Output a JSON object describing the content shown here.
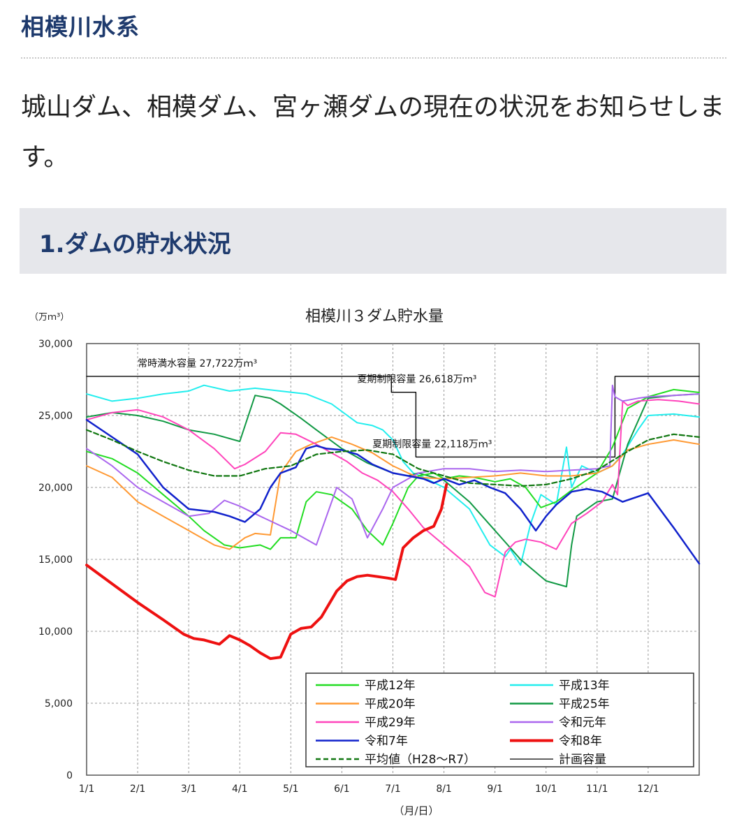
{
  "page": {
    "title": "相模川水系",
    "intro": "城山ダム、相模ダム、宮ヶ瀬ダムの現在の状況をお知らせします。",
    "section_title": "1.ダムの貯水状況"
  },
  "chart_data": {
    "type": "line",
    "title": "相模川３ダム貯水量",
    "ylabel": "（万ｍ³）",
    "xlabel": "（月/日）",
    "ylim": [
      0,
      30000
    ],
    "xlim": [
      0,
      12
    ],
    "y_ticks": [
      "0",
      "5,000",
      "10,000",
      "15,000",
      "20,000",
      "25,000",
      "30,000"
    ],
    "y_tick_values": [
      0,
      5000,
      10000,
      15000,
      20000,
      25000,
      30000
    ],
    "x_ticks": [
      "1/1",
      "2/1",
      "3/1",
      "4/1",
      "5/1",
      "6/1",
      "7/1",
      "8/1",
      "9/1",
      "10/1",
      "11/1",
      "12/1"
    ],
    "annotations": [
      {
        "text": "常時満水容量 27,722万ｍ³",
        "x": 1.0,
        "y": 28400
      },
      {
        "text": "夏期制限容量 26,618万ｍ³",
        "x": 5.3,
        "y": 27300
      },
      {
        "text": "夏期制限容量 22,118万ｍ³",
        "x": 5.6,
        "y": 22800
      }
    ],
    "legend": {
      "placement": "bottom-right",
      "entries": [
        {
          "name": "平成12年",
          "color": "#22dd22",
          "style": "solid"
        },
        {
          "name": "平成13年",
          "color": "#22eeee",
          "style": "solid"
        },
        {
          "name": "平成20年",
          "color": "#ff9933",
          "style": "solid"
        },
        {
          "name": "平成25年",
          "color": "#119944",
          "style": "solid"
        },
        {
          "name": "平成29年",
          "color": "#ff44bb",
          "style": "solid"
        },
        {
          "name": "令和元年",
          "color": "#aa66ee",
          "style": "solid"
        },
        {
          "name": "令和7年",
          "color": "#1122cc",
          "style": "solid"
        },
        {
          "name": "令和8年",
          "color": "#ee1111",
          "style": "thick"
        },
        {
          "name": "平均値（H28～R7）",
          "color": "#117711",
          "style": "dashed"
        },
        {
          "name": "計画容量",
          "color": "#000000",
          "style": "thin"
        }
      ]
    },
    "series": [
      {
        "name": "計画容量",
        "color": "#000000",
        "width": 1.4,
        "step": true,
        "x": [
          0,
          5.97,
          5.97,
          6.45,
          6.45,
          10.35,
          10.35,
          12
        ],
        "y": [
          27722,
          27722,
          26618,
          26618,
          22118,
          22118,
          27722,
          27722
        ]
      },
      {
        "name": "平成13年",
        "color": "#22eeee",
        "width": 2,
        "x": [
          0,
          0.5,
          1,
          1.5,
          2,
          2.3,
          2.8,
          3.3,
          3.8,
          4.3,
          4.8,
          5.3,
          5.6,
          5.8,
          6,
          6.2,
          6.4,
          6.6,
          7,
          7.5,
          7.9,
          8.2,
          8.3,
          8.5,
          8.7,
          8.9,
          9.2,
          9.4,
          9.5,
          9.7,
          10,
          10.3,
          10.5,
          10.8,
          11,
          11.5,
          12
        ],
        "y": [
          26500,
          26000,
          26200,
          26500,
          26700,
          27100,
          26700,
          26900,
          26700,
          26500,
          25800,
          24500,
          24300,
          24000,
          23300,
          21800,
          21000,
          20700,
          20000,
          18500,
          16000,
          15200,
          15700,
          14600,
          17500,
          19500,
          18800,
          22800,
          20000,
          21500,
          21000,
          21500,
          22300,
          24000,
          25000,
          25100,
          24900
        ]
      },
      {
        "name": "平成25年",
        "color": "#119944",
        "width": 2,
        "x": [
          0,
          0.5,
          1,
          1.5,
          2,
          2.5,
          3,
          3.3,
          3.6,
          3.8,
          4.2,
          4.5,
          5,
          5.5,
          6,
          6.3,
          6.5,
          7,
          7.5,
          8,
          8.5,
          9,
          9.4,
          9.5,
          9.6,
          10,
          10.3,
          10.6,
          11,
          11.5,
          12
        ],
        "y": [
          24900,
          25200,
          25000,
          24600,
          24000,
          23700,
          23200,
          26400,
          26200,
          25800,
          24800,
          24000,
          22700,
          21700,
          21000,
          20800,
          21000,
          20500,
          19000,
          17000,
          15000,
          13500,
          13100,
          16000,
          18000,
          19000,
          19200,
          23000,
          26200,
          26400,
          26500
        ]
      },
      {
        "name": "平成12年",
        "color": "#22dd22",
        "width": 2,
        "x": [
          0,
          0.5,
          1,
          1.5,
          2,
          2.3,
          2.7,
          3,
          3.4,
          3.6,
          3.8,
          4.1,
          4.3,
          4.5,
          4.8,
          5.2,
          5.5,
          5.8,
          6,
          6.3,
          6.5,
          6.8,
          7,
          7.3,
          7.6,
          8,
          8.3,
          8.6,
          8.9,
          9.2,
          9.5,
          10,
          10.3,
          10.6,
          11,
          11.5,
          12
        ],
        "y": [
          22500,
          22000,
          21000,
          19500,
          18000,
          17000,
          16000,
          15800,
          16000,
          15700,
          16500,
          16500,
          19000,
          19700,
          19500,
          18500,
          17000,
          16000,
          17500,
          20000,
          20800,
          21000,
          20600,
          20800,
          20700,
          20400,
          20600,
          20000,
          18600,
          19000,
          19800,
          21000,
          22800,
          25500,
          26300,
          26800,
          26600
        ]
      },
      {
        "name": "平成20年",
        "color": "#ff9933",
        "width": 2,
        "x": [
          0,
          0.5,
          1,
          1.5,
          2,
          2.5,
          2.8,
          3.1,
          3.3,
          3.6,
          3.8,
          4.1,
          4.4,
          4.8,
          5.2,
          5.6,
          6,
          6.3,
          6.5,
          7,
          7.5,
          8,
          8.5,
          9,
          9.5,
          10,
          10.3,
          10.6,
          11,
          11.5,
          12
        ],
        "y": [
          21500,
          20700,
          19000,
          18000,
          17000,
          16000,
          15700,
          16500,
          16800,
          16700,
          21000,
          22500,
          23000,
          23500,
          23000,
          22400,
          21500,
          21000,
          20700,
          20600,
          20700,
          20800,
          21000,
          20800,
          20800,
          21000,
          21500,
          22600,
          23000,
          23300,
          23000
        ]
      },
      {
        "name": "平成29年",
        "color": "#ff44bb",
        "width": 2,
        "x": [
          0,
          0.5,
          1,
          1.5,
          2,
          2.5,
          2.9,
          3.1,
          3.5,
          3.8,
          4.1,
          4.5,
          4.8,
          5.1,
          5.4,
          5.7,
          6,
          6.3,
          6.6,
          7,
          7.5,
          7.8,
          8,
          8.2,
          8.4,
          8.6,
          8.9,
          9.2,
          9.5,
          9.8,
          10.1,
          10.3,
          10.4,
          10.5,
          10.6,
          10.8,
          11.2,
          11.6,
          12
        ],
        "y": [
          24700,
          25200,
          25400,
          24900,
          24000,
          22700,
          21300,
          21600,
          22500,
          23800,
          23700,
          23000,
          22400,
          21800,
          21000,
          20500,
          19700,
          18500,
          17200,
          16000,
          14500,
          12700,
          12400,
          15500,
          16200,
          16400,
          16200,
          15700,
          17500,
          18200,
          19000,
          20200,
          19500,
          26000,
          25700,
          26000,
          26100,
          26000,
          25800
        ]
      },
      {
        "name": "令和元年",
        "color": "#aa66ee",
        "width": 2,
        "x": [
          0,
          0.5,
          1,
          1.5,
          2,
          2.4,
          2.7,
          3,
          3.4,
          3.7,
          4,
          4.5,
          4.9,
          5.2,
          5.5,
          5.8,
          6,
          6.5,
          7,
          7.5,
          8,
          8.5,
          9,
          9.5,
          10,
          10.25,
          10.3,
          10.35,
          10.5,
          10.8,
          11,
          11.5,
          12
        ],
        "y": [
          22700,
          21500,
          20000,
          19000,
          18000,
          18200,
          19100,
          18700,
          18000,
          17500,
          17000,
          16000,
          20000,
          19200,
          16500,
          18500,
          20000,
          21000,
          21300,
          21300,
          21100,
          21200,
          21100,
          21200,
          21300,
          21500,
          27100,
          26300,
          26000,
          26200,
          26300,
          26400,
          26500
        ]
      },
      {
        "name": "令和7年",
        "color": "#1122cc",
        "width": 2.5,
        "x": [
          0,
          0.5,
          1,
          1.5,
          2,
          2.5,
          2.8,
          3.1,
          3.4,
          3.6,
          3.8,
          4.1,
          4.3,
          4.5,
          4.7,
          5,
          5.3,
          5.6,
          6,
          6.3,
          6.6,
          6.8,
          7,
          7.3,
          7.6,
          7.9,
          8.2,
          8.5,
          8.8,
          9,
          9.2,
          9.5,
          9.8,
          10.1,
          10.5,
          11,
          11.5,
          12
        ],
        "y": [
          24700,
          23500,
          22300,
          20000,
          18500,
          18300,
          18000,
          17600,
          18500,
          20000,
          21000,
          21400,
          22700,
          22900,
          22700,
          22600,
          22300,
          21600,
          21000,
          20800,
          20600,
          20300,
          20600,
          20200,
          20500,
          20000,
          19600,
          18500,
          17000,
          18000,
          18800,
          19700,
          19900,
          19700,
          19000,
          19600,
          17200,
          14700
        ]
      },
      {
        "name": "令和8年",
        "color": "#ee1111",
        "width": 4,
        "x": [
          0,
          0.5,
          1,
          1.5,
          1.9,
          2.1,
          2.3,
          2.6,
          2.8,
          3,
          3.2,
          3.4,
          3.6,
          3.8,
          4,
          4.2,
          4.4,
          4.6,
          4.9,
          5.1,
          5.3,
          5.5,
          5.7,
          5.9,
          6.05,
          6.2,
          6.4,
          6.6,
          6.8,
          6.95,
          7.05
        ],
        "y": [
          14600,
          13300,
          12000,
          10800,
          9800,
          9500,
          9400,
          9100,
          9700,
          9400,
          9000,
          8500,
          8100,
          8200,
          9800,
          10200,
          10300,
          11000,
          12800,
          13500,
          13800,
          13900,
          13800,
          13700,
          13600,
          15800,
          16500,
          17000,
          17300,
          18500,
          20200
        ]
      },
      {
        "name": "平均値（H28～R7）",
        "color": "#117711",
        "width": 2.2,
        "dash": "7,4",
        "x": [
          0,
          0.5,
          1,
          1.5,
          2,
          2.5,
          3,
          3.5,
          4,
          4.5,
          5,
          5.5,
          6,
          6.5,
          7,
          7.5,
          8,
          8.5,
          9,
          9.5,
          10,
          10.5,
          11,
          11.5,
          12
        ],
        "y": [
          24000,
          23300,
          22500,
          21800,
          21200,
          20800,
          20800,
          21300,
          21500,
          22300,
          22500,
          22600,
          22300,
          21300,
          20800,
          20300,
          20200,
          20100,
          20200,
          20600,
          21200,
          22300,
          23300,
          23700,
          23500
        ]
      }
    ]
  }
}
